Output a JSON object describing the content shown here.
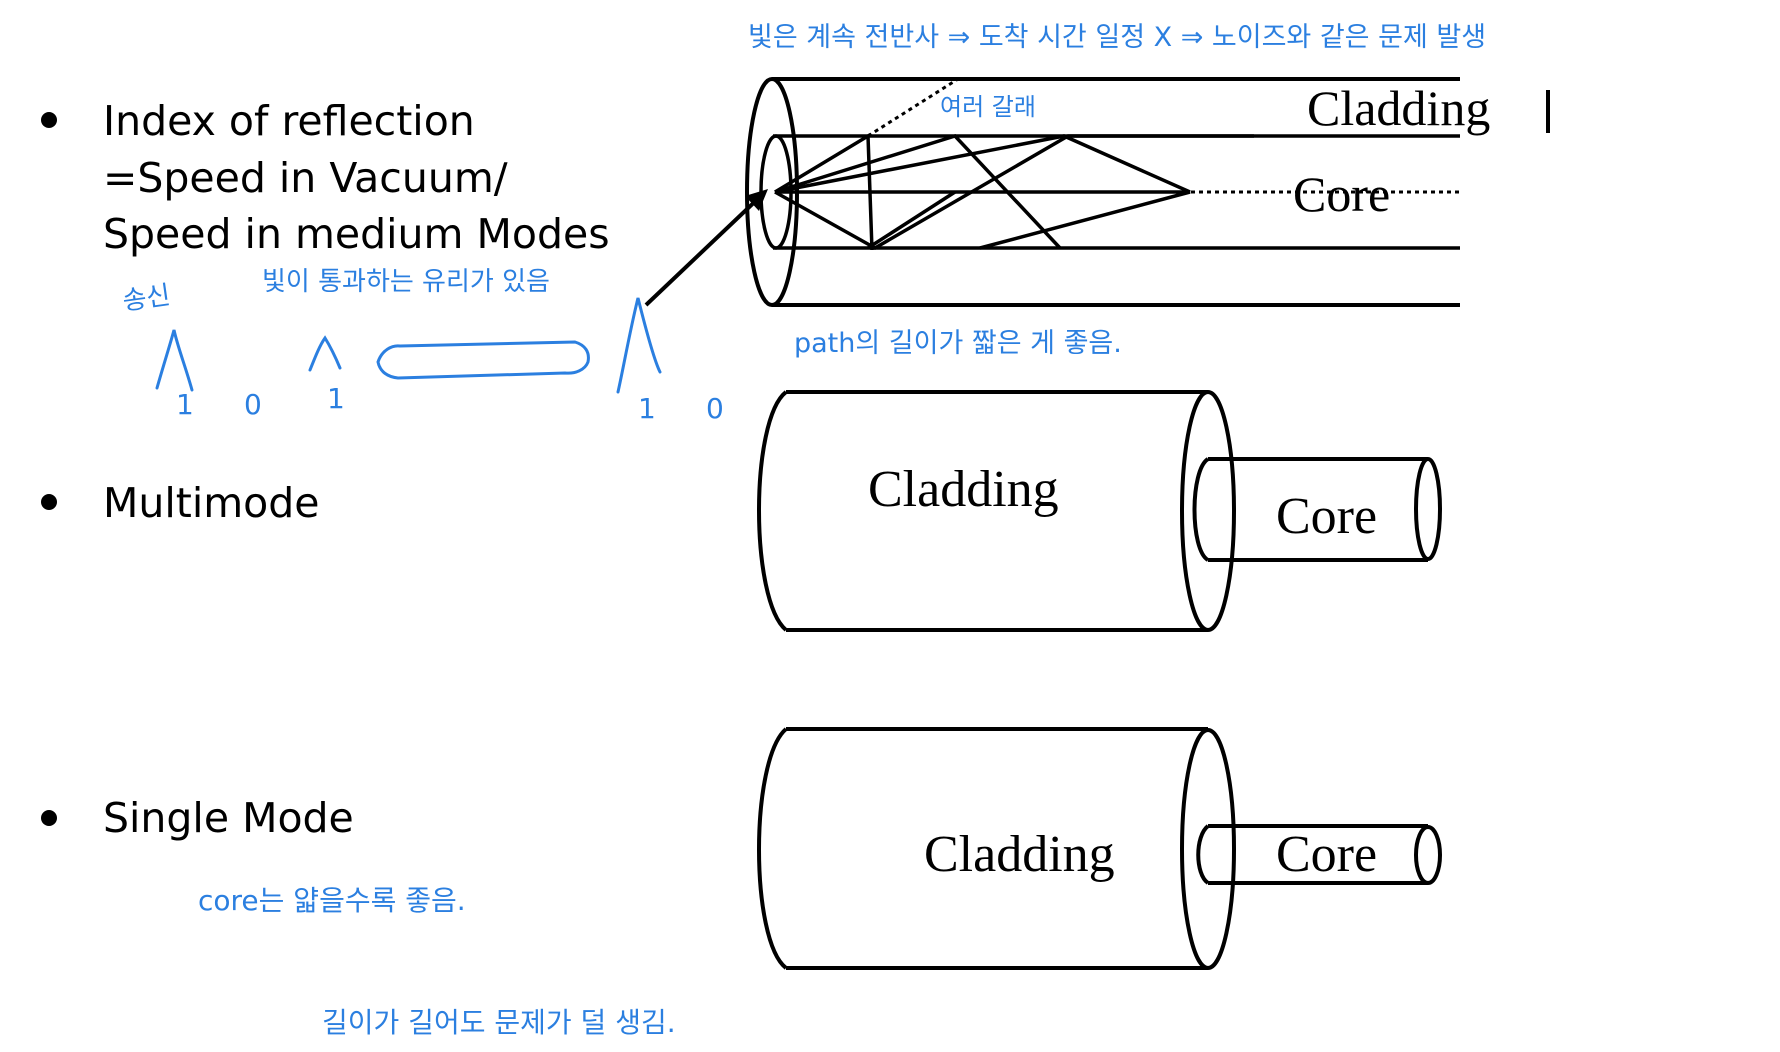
{
  "bullets": {
    "index_line1": "Index of reflection",
    "index_line2": "=Speed in Vacuum/",
    "index_line3": "Speed in medium Modes",
    "multimode": "Multimode",
    "single_mode": "Single Mode"
  },
  "diagram_labels": {
    "top_cladding": "Cladding",
    "top_core": "Core",
    "multi_cladding": "Cladding",
    "multi_core": "Core",
    "single_cladding": "Cladding",
    "single_core": "Core"
  },
  "annotations": {
    "top_note": "빛은 계속 전반사 ⇒ 도착 시간 일정 X ⇒ 노이즈와 같은 문제 발생",
    "many_paths": "여러 갈래",
    "path_note": "path의 길이가 짧은 게 좋음.",
    "transmit": "송신",
    "glass_note": "빛이 통과하는 유리가 있음",
    "bit_1a": "1",
    "bit_0a": "0",
    "bit_1b": "1",
    "bit_1c": "1",
    "bit_0b": "0",
    "core_thin": "core는 얇을수록 좋음.",
    "long_ok": "길이가 길어도 문제가 덜 생김."
  },
  "colors": {
    "ink": "#000000",
    "annotation_blue": "#2b7fe0"
  }
}
